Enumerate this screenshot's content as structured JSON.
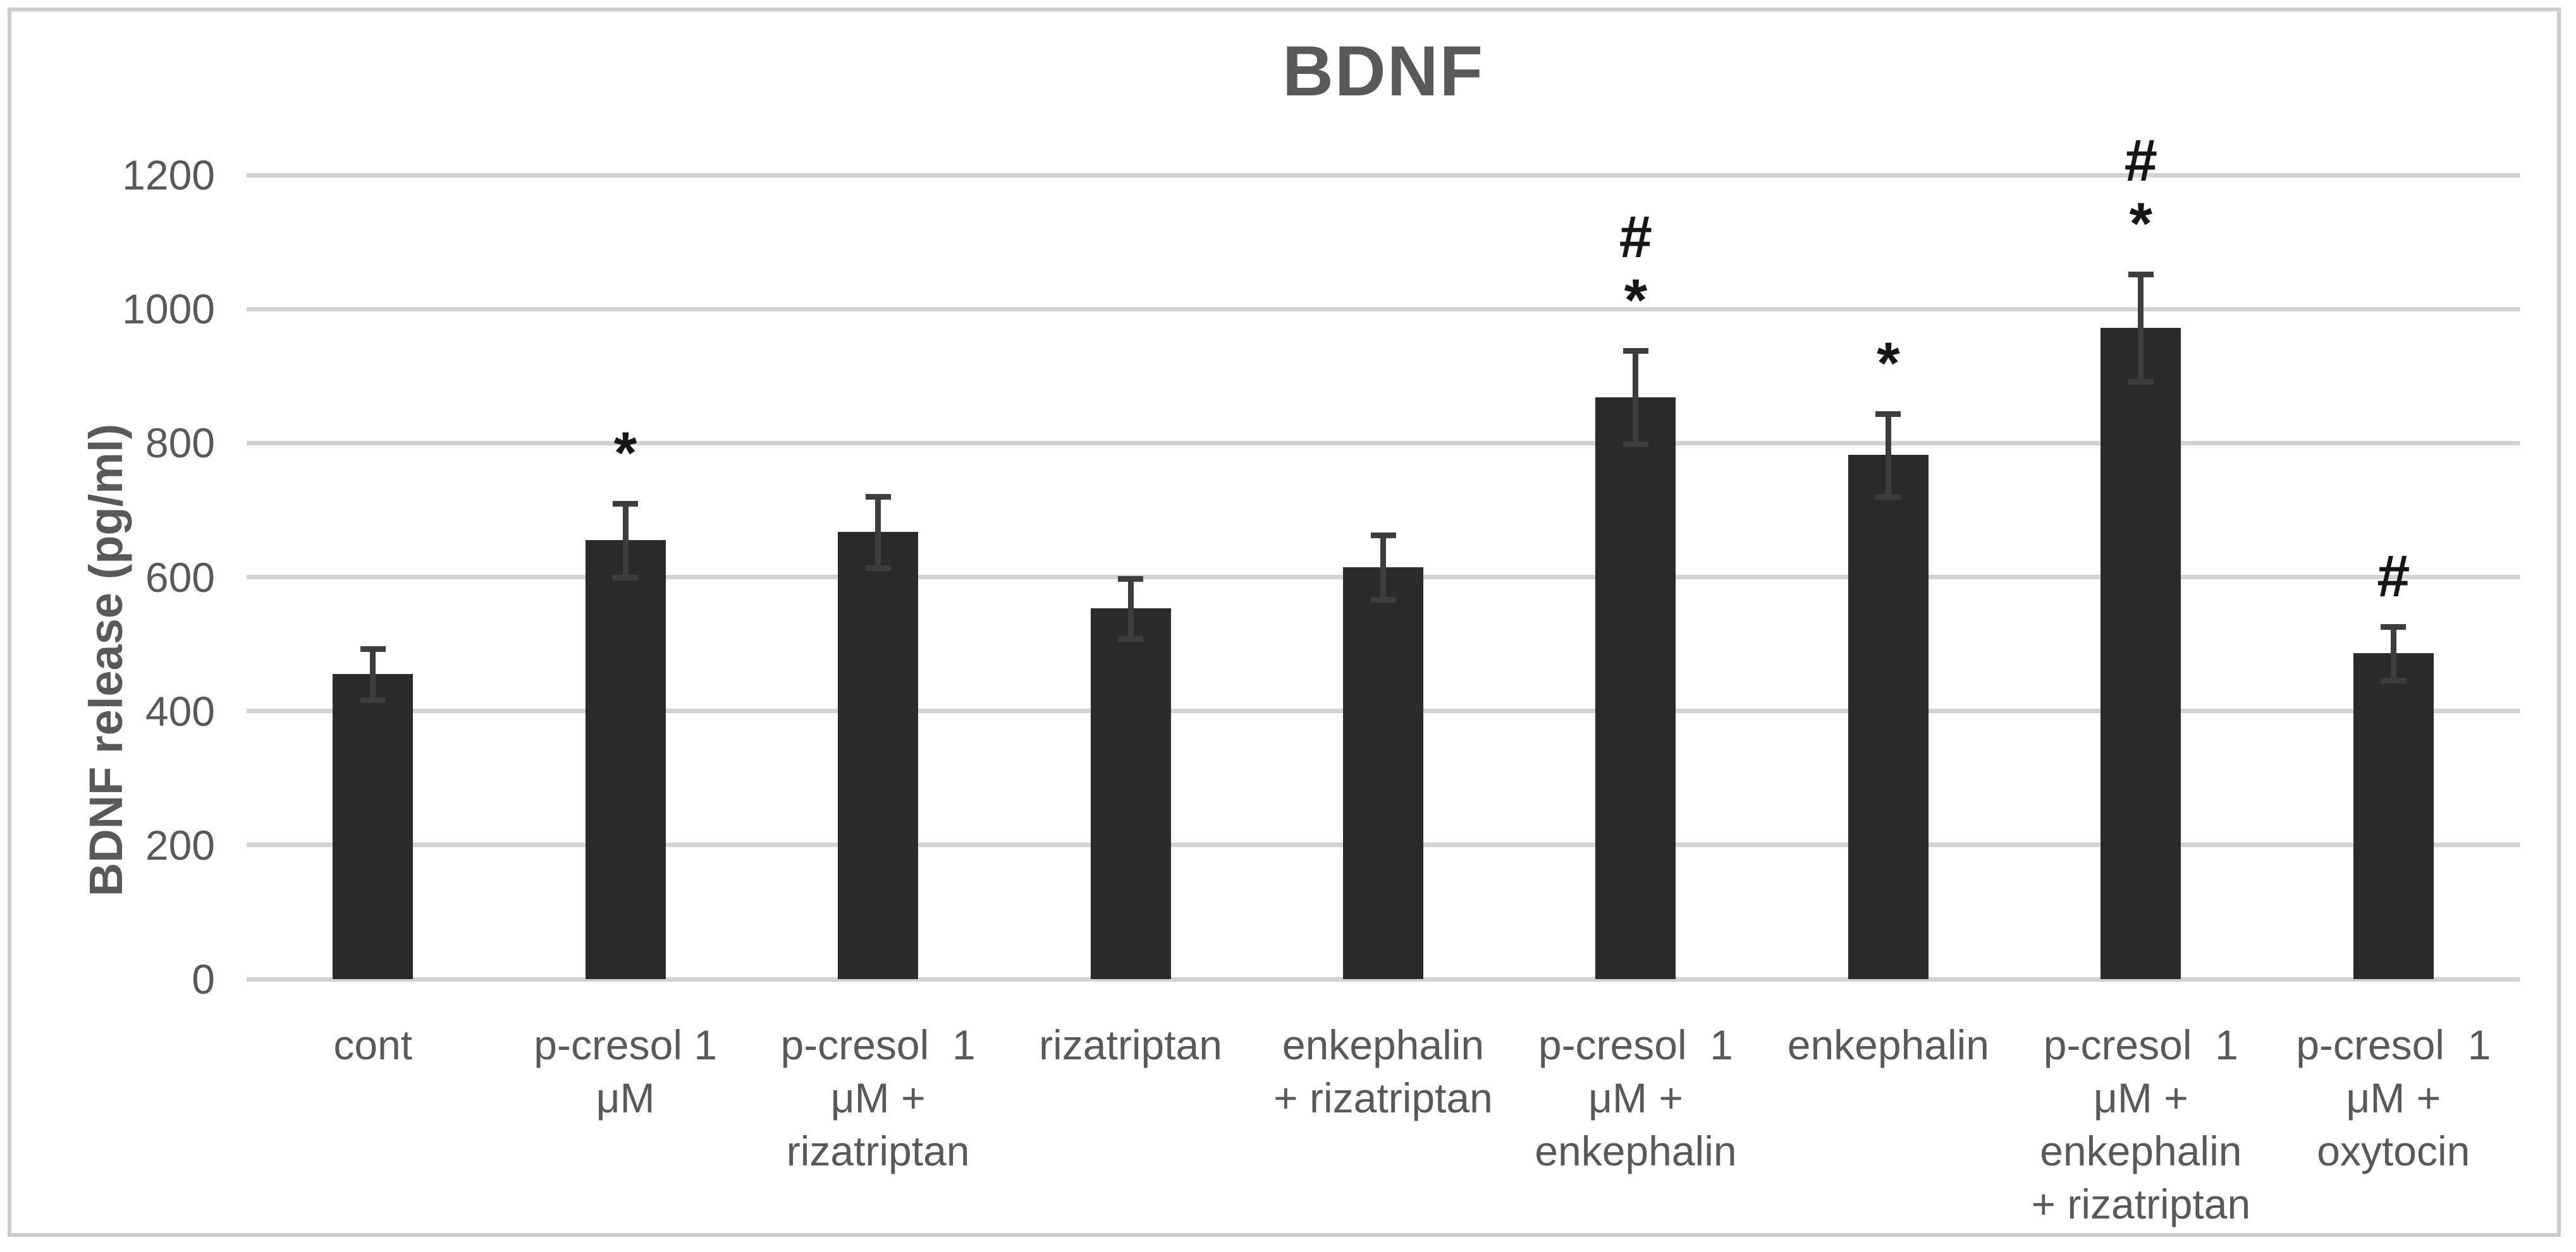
{
  "figure": {
    "title": "BDNF",
    "y_axis_title": "BDNF release (pg/ml)"
  },
  "chart_data": {
    "type": "bar",
    "title": "BDNF",
    "xlabel": "",
    "ylabel": "BDNF release (pg/ml)",
    "ylim": [
      0,
      1200
    ],
    "yticks": [
      0,
      200,
      400,
      600,
      800,
      1000,
      1200
    ],
    "grid": true,
    "legend": false,
    "categories": [
      "cont",
      "p-cresol 1 μM",
      "p-cresol 1 μM + rizatriptan",
      "rizatriptan",
      "enkephalin + rizatriptan",
      "p-cresol 1 μM + enkephalin",
      "enkephalin",
      "p-cresol 1 μM + enkephalin + rizatriptan",
      "p-cresol 1 μM + oxytocin"
    ],
    "category_label_lines": [
      [
        "cont"
      ],
      [
        "p-cresol 1",
        "μM"
      ],
      [
        "p-cresol  1",
        "μM +",
        "rizatriptan"
      ],
      [
        "rizatriptan"
      ],
      [
        "enkephalin",
        "+ rizatriptan"
      ],
      [
        "p-cresol  1",
        "μM +",
        "enkephalin"
      ],
      [
        "enkephalin"
      ],
      [
        "p-cresol  1",
        "μM +",
        "enkephalin",
        "+ rizatriptan"
      ],
      [
        "p-cresol  1",
        "μM +",
        "oxytocin"
      ]
    ],
    "values": [
      455,
      655,
      667,
      553,
      615,
      868,
      782,
      972,
      486
    ],
    "error_bars": [
      38,
      55,
      53,
      45,
      48,
      70,
      62,
      80,
      40
    ],
    "significance_marks": [
      [],
      [
        "*"
      ],
      [],
      [],
      [],
      [
        "#",
        "*"
      ],
      [
        "*"
      ],
      [
        "#",
        "*"
      ],
      [
        "#"
      ]
    ]
  },
  "colors": {
    "background": "#ffffff",
    "border": "#cdcdcd",
    "text": "#595959",
    "bar": "#2b2b2b",
    "error_bar": "#3d3d3d",
    "gridline": "#d2d2d2",
    "annotation": "#161616"
  }
}
